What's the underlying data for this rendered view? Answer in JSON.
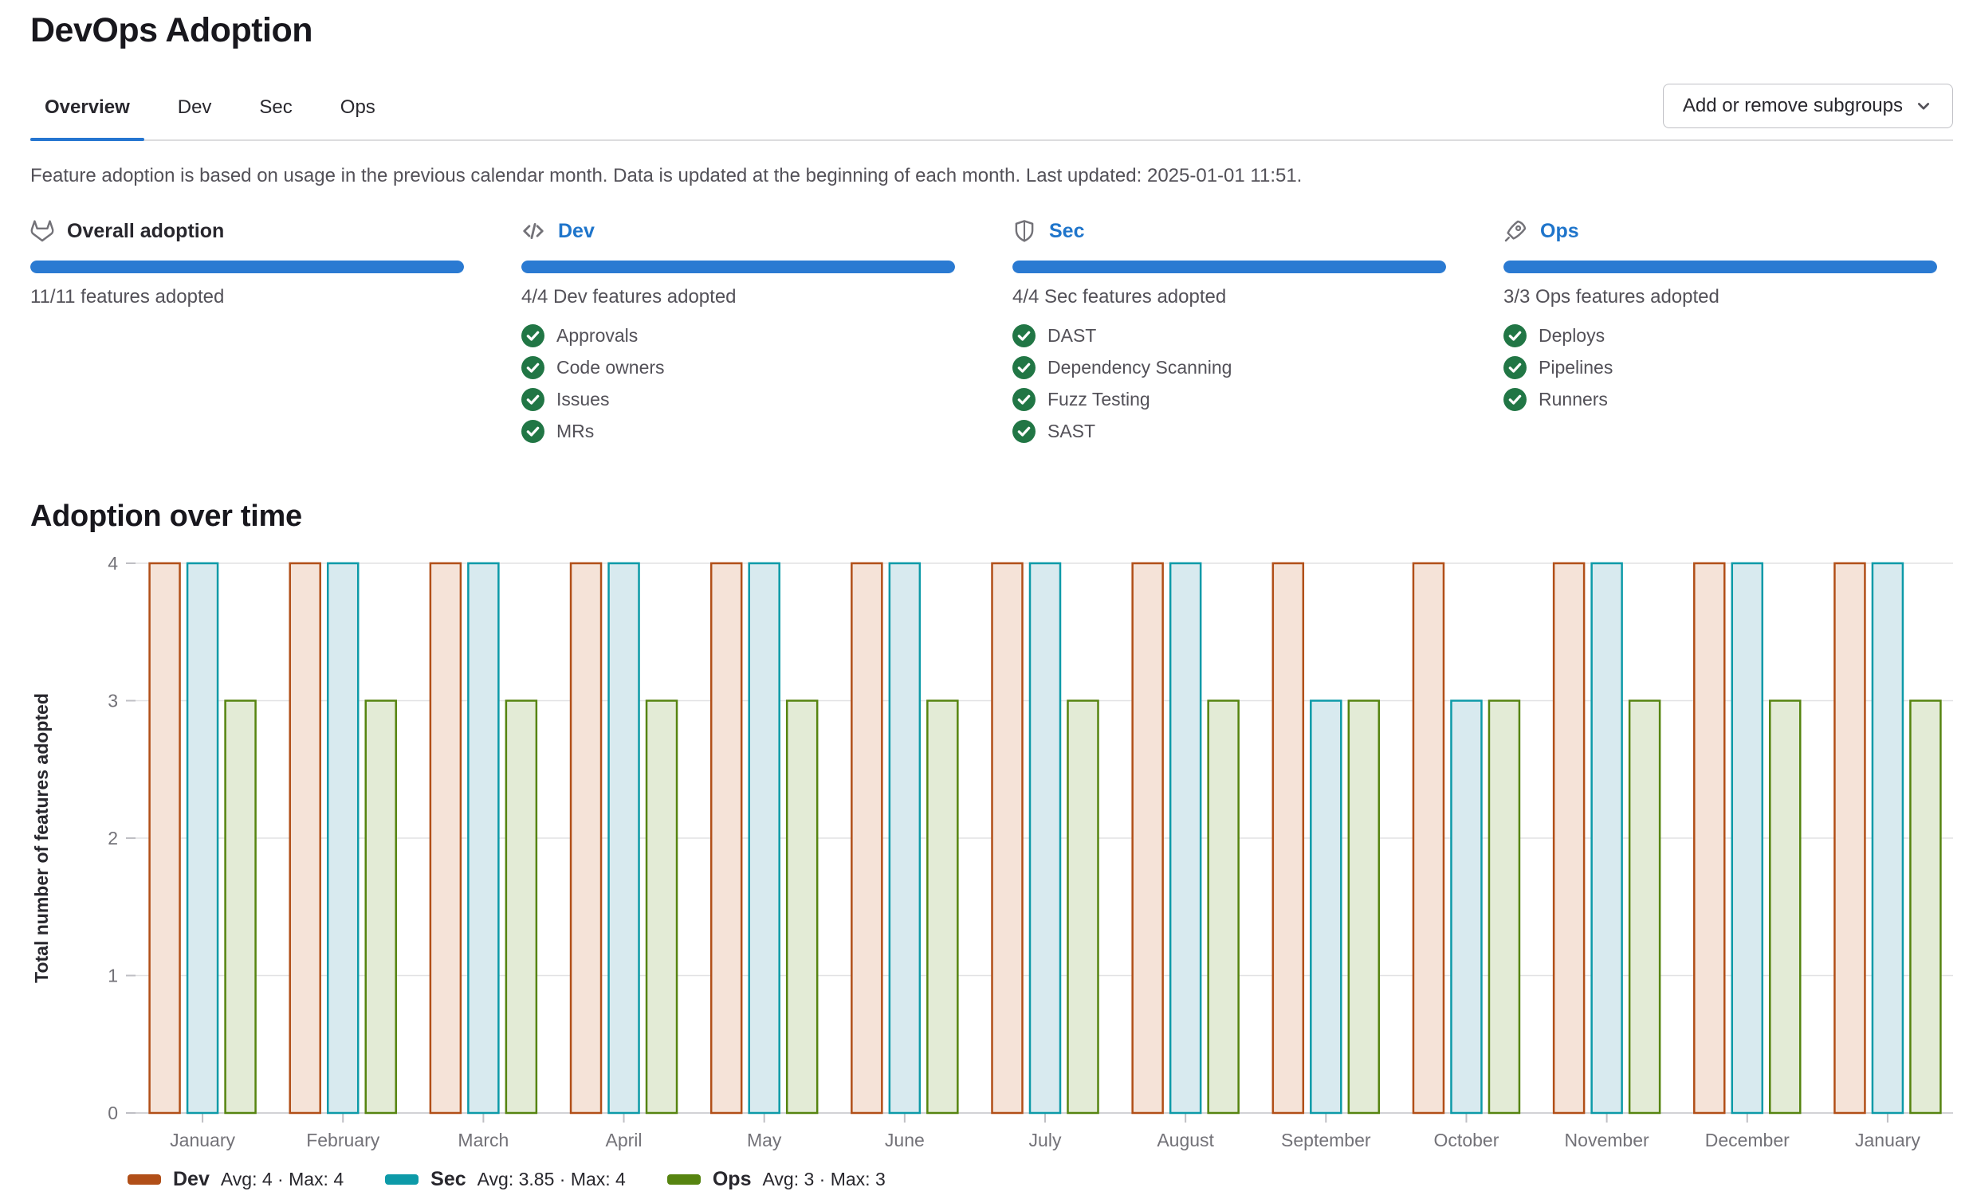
{
  "page": {
    "title": "DevOps Adoption",
    "description": "Feature adoption is based on usage in the previous calendar month. Data is updated at the beginning of each month. Last updated: 2025-01-01 11:51.",
    "section_title": "Adoption over time"
  },
  "tabs": [
    {
      "label": "Overview",
      "active": true
    },
    {
      "label": "Dev",
      "active": false
    },
    {
      "label": "Sec",
      "active": false
    },
    {
      "label": "Ops",
      "active": false
    }
  ],
  "subgroups_button": {
    "label": "Add or remove subgroups",
    "icon": "chevron-down-icon"
  },
  "cards": [
    {
      "icon": "tanuki-icon",
      "title": "Overall adoption",
      "is_link": false,
      "progress_percent": 100,
      "subtitle": "11/11 features adopted",
      "features": []
    },
    {
      "icon": "code-icon",
      "title": "Dev",
      "is_link": true,
      "progress_percent": 100,
      "subtitle": "4/4 Dev features adopted",
      "features": [
        "Approvals",
        "Code owners",
        "Issues",
        "MRs"
      ]
    },
    {
      "icon": "shield-icon",
      "title": "Sec",
      "is_link": true,
      "progress_percent": 100,
      "subtitle": "4/4 Sec features adopted",
      "features": [
        "DAST",
        "Dependency Scanning",
        "Fuzz Testing",
        "SAST"
      ]
    },
    {
      "icon": "rocket-icon",
      "title": "Ops",
      "is_link": true,
      "progress_percent": 100,
      "subtitle": "3/3 Ops features adopted",
      "features": [
        "Deploys",
        "Pipelines",
        "Runners"
      ]
    }
  ],
  "chart_data": {
    "type": "bar",
    "title": "Adoption over time",
    "xlabel": "",
    "ylabel": "Total number of features adopted",
    "ylim": [
      0,
      4
    ],
    "yticks": [
      0,
      1,
      2,
      3,
      4
    ],
    "grid": true,
    "legend_position": "bottom",
    "categories": [
      "January",
      "February",
      "March",
      "April",
      "May",
      "June",
      "July",
      "August",
      "September",
      "October",
      "November",
      "December",
      "January"
    ],
    "series": [
      {
        "name": "Dev",
        "color": "#b14f18",
        "fill": "#f5e3d8",
        "values": [
          4,
          4,
          4,
          4,
          4,
          4,
          4,
          4,
          4,
          4,
          4,
          4,
          4
        ],
        "stats": "Avg: 4 · Max: 4"
      },
      {
        "name": "Sec",
        "color": "#0d9aa8",
        "fill": "#d8eaef",
        "values": [
          4,
          4,
          4,
          4,
          4,
          4,
          4,
          4,
          3,
          3,
          4,
          4,
          4
        ],
        "stats": "Avg: 3.85 · Max: 4"
      },
      {
        "name": "Ops",
        "color": "#568410",
        "fill": "#e3ebd6",
        "values": [
          3,
          3,
          3,
          3,
          3,
          3,
          3,
          3,
          3,
          3,
          3,
          3,
          3
        ],
        "stats": "Avg: 3 · Max: 3"
      }
    ]
  },
  "colors": {
    "link_blue": "#1f75cb",
    "progress_blue": "#2a7ad2",
    "check_green": "#217645",
    "grid_line": "#e2e2e4",
    "axis_line": "#d2d2d5",
    "tick_mark": "#bfbfc4",
    "tick_text": "#737278"
  }
}
